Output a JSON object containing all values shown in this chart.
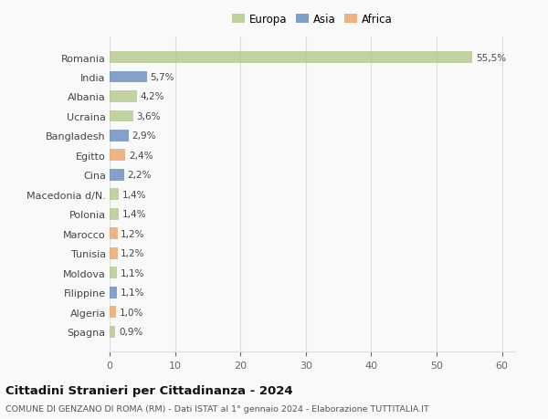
{
  "countries": [
    "Romania",
    "India",
    "Albania",
    "Ucraina",
    "Bangladesh",
    "Egitto",
    "Cina",
    "Macedonia d/N.",
    "Polonia",
    "Marocco",
    "Tunisia",
    "Moldova",
    "Filippine",
    "Algeria",
    "Spagna"
  ],
  "values": [
    55.5,
    5.7,
    4.2,
    3.6,
    2.9,
    2.4,
    2.2,
    1.4,
    1.4,
    1.2,
    1.2,
    1.1,
    1.1,
    1.0,
    0.9
  ],
  "labels": [
    "55,5%",
    "5,7%",
    "4,2%",
    "3,6%",
    "2,9%",
    "2,4%",
    "2,2%",
    "1,4%",
    "1,4%",
    "1,2%",
    "1,2%",
    "1,1%",
    "1,1%",
    "1,0%",
    "0,9%"
  ],
  "colors": [
    "#b5c98e",
    "#6c8ebf",
    "#b5c98e",
    "#b5c98e",
    "#6c8ebf",
    "#e8a86e",
    "#6c8ebf",
    "#b5c98e",
    "#b5c98e",
    "#e8a86e",
    "#e8a86e",
    "#b5c98e",
    "#6c8ebf",
    "#e8a86e",
    "#b5c98e"
  ],
  "legend_labels": [
    "Europa",
    "Asia",
    "Africa"
  ],
  "legend_colors": [
    "#b5c98e",
    "#6c8ebf",
    "#e8a86e"
  ],
  "title": "Cittadini Stranieri per Cittadinanza - 2024",
  "subtitle": "COMUNE DI GENZANO DI ROMA (RM) - Dati ISTAT al 1° gennaio 2024 - Elaborazione TUTTITALIA.IT",
  "xlim": [
    0,
    62
  ],
  "xticks": [
    0,
    10,
    20,
    30,
    40,
    50,
    60
  ],
  "background_color": "#f9f9f9",
  "grid_color": "#dddddd",
  "bar_height": 0.6
}
